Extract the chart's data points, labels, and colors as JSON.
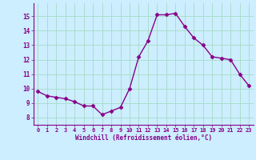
{
  "x": [
    0,
    1,
    2,
    3,
    4,
    5,
    6,
    7,
    8,
    9,
    10,
    11,
    12,
    13,
    14,
    15,
    16,
    17,
    18,
    19,
    20,
    21,
    22,
    23
  ],
  "y": [
    9.8,
    9.5,
    9.4,
    9.3,
    9.1,
    8.8,
    8.8,
    8.2,
    8.45,
    8.7,
    10.0,
    12.2,
    13.3,
    15.1,
    15.1,
    15.2,
    14.3,
    13.5,
    13.0,
    12.2,
    12.1,
    12.0,
    11.0,
    10.2
  ],
  "line_color": "#880088",
  "marker": "D",
  "marker_size": 2.5,
  "bg_color": "#cceeff",
  "grid_color": "#aaddcc",
  "xlabel": "Windchill (Refroidissement éolien,°C)",
  "xlabel_color": "#880088",
  "tick_color": "#880088",
  "ylim": [
    7.5,
    15.9
  ],
  "xlim": [
    -0.5,
    23.5
  ],
  "yticks": [
    8,
    9,
    10,
    11,
    12,
    13,
    14,
    15
  ],
  "xticks": [
    0,
    1,
    2,
    3,
    4,
    5,
    6,
    7,
    8,
    9,
    10,
    11,
    12,
    13,
    14,
    15,
    16,
    17,
    18,
    19,
    20,
    21,
    22,
    23
  ]
}
